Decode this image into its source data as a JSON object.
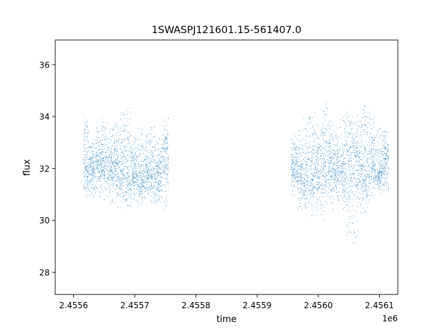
{
  "chart_data": {
    "type": "scatter",
    "title": "1SWASPJ121601.15-561407.0",
    "xlabel": "time",
    "ylabel": "flux",
    "x_offset_label": "1e6",
    "xlim": [
      2.45557,
      2.45613
    ],
    "ylim": [
      27.15,
      36.95
    ],
    "x_ticks": [
      {
        "value": 2.4556,
        "label": "2.4556"
      },
      {
        "value": 2.4557,
        "label": "2.4557"
      },
      {
        "value": 2.4558,
        "label": "2.4558"
      },
      {
        "value": 2.4559,
        "label": "2.4559"
      },
      {
        "value": 2.456,
        "label": "2.4560"
      },
      {
        "value": 2.4561,
        "label": "2.4561"
      }
    ],
    "y_ticks": [
      {
        "value": 28,
        "label": "28"
      },
      {
        "value": 30,
        "label": "30"
      },
      {
        "value": 32,
        "label": "32"
      },
      {
        "value": 34,
        "label": "34"
      },
      {
        "value": 36,
        "label": "36"
      }
    ],
    "grid": false,
    "marker_color": "#1f77b4",
    "series": [
      {
        "x": [
          2.45562,
          2.45563,
          2.45564,
          2.45565,
          2.45566,
          2.45567,
          2.45568,
          2.45569,
          2.4557,
          2.45571,
          2.45572,
          2.45573,
          2.45574,
          2.45575,
          2.45596,
          2.45597,
          2.45598,
          2.45599,
          2.456,
          2.45601,
          2.45602,
          2.45603,
          2.45604,
          2.45605,
          2.45606,
          2.45607,
          2.45608,
          2.45609,
          2.4561,
          2.45611
        ],
        "y": [
          32.1,
          32.0,
          32.3,
          32.1,
          32.0,
          32.2,
          31.9,
          31.7,
          31.8,
          31.6,
          31.9,
          31.8,
          32.0,
          32.6,
          32.0,
          31.8,
          31.5,
          31.6,
          31.9,
          32.1,
          32.2,
          32.0,
          31.9,
          32.3,
          32.5,
          32.0,
          31.8,
          32.1,
          31.9,
          32.4
        ],
        "y_min": [
          30.8,
          30.9,
          30.9,
          30.8,
          30.6,
          30.5,
          30.3,
          30.3,
          30.6,
          30.5,
          30.6,
          30.5,
          30.5,
          30.3,
          30.9,
          30.4,
          30.0,
          30.2,
          30.2,
          30.0,
          30.4,
          30.7,
          30.4,
          29.4,
          29.1,
          30.2,
          30.3,
          30.8,
          30.9,
          31.1
        ],
        "y_max": [
          34.1,
          33.2,
          33.7,
          34.0,
          33.6,
          33.8,
          34.2,
          34.4,
          33.3,
          33.6,
          33.4,
          33.8,
          33.2,
          34.0,
          33.4,
          33.5,
          34.0,
          34.3,
          33.9,
          34.6,
          33.9,
          33.7,
          34.1,
          34.2,
          34.1,
          34.4,
          34.5,
          34.1,
          33.6,
          33.5
        ]
      }
    ]
  }
}
